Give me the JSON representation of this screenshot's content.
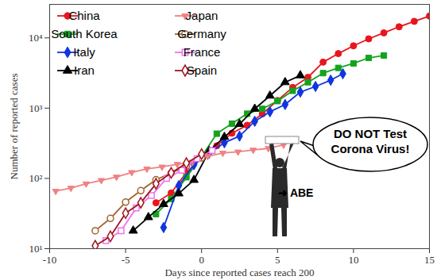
{
  "chart_data": {
    "type": "line",
    "xlabel": "Days since reported cases reach 200",
    "ylabel": "Number of reported cases",
    "log": "y",
    "grid": false,
    "legend": "upper left",
    "xlim": [
      -10,
      15
    ],
    "ylim": [
      10,
      30000
    ],
    "xticks": [
      -10,
      -5,
      0,
      5,
      10,
      15
    ],
    "yticks": [
      {
        "value": 10,
        "label": "10¹"
      },
      {
        "value": 100,
        "label": "10²"
      },
      {
        "value": 1000,
        "label": "10³"
      },
      {
        "value": 10000,
        "label": "10⁴"
      }
    ],
    "series": [
      {
        "name": "China",
        "color": "#e8161c",
        "marker": "circle",
        "x": [
          -3,
          -2,
          -1,
          0,
          1,
          2,
          3,
          4,
          5,
          6,
          7,
          8,
          9,
          10,
          11,
          12,
          13,
          14,
          15
        ],
        "values": [
          45,
          62,
          121,
          198,
          291,
          440,
          571,
          830,
          1287,
          1975,
          2744,
          4515,
          5974,
          7711,
          9692,
          11791,
          14380,
          17205,
          20438
        ]
      },
      {
        "name": "South Korea",
        "color": "#14a31e",
        "marker": "square",
        "x": [
          -3,
          -2,
          -1,
          0,
          1,
          2,
          3,
          4,
          5,
          6,
          7,
          8,
          9,
          10,
          11,
          12
        ],
        "values": [
          31,
          51,
          104,
          204,
          433,
          602,
          833,
          977,
          1261,
          1766,
          2337,
          3150,
          3736,
          4335,
          5186,
          5621
        ]
      },
      {
        "name": "Italy",
        "color": "#1034e0",
        "marker": "diamond",
        "x": [
          -2.5,
          -1.5,
          -0.5,
          0.5,
          1.5,
          2.5,
          3.5,
          4.5,
          5.5,
          6.5,
          7.5,
          8.5,
          9.3
        ],
        "values": [
          20,
          79,
          157,
          229,
          322,
          400,
          650,
          888,
          1128,
          1694,
          2036,
          2502,
          3089
        ]
      },
      {
        "name": "Iran",
        "color": "#000000",
        "marker": "triangle",
        "x": [
          -4.5,
          -3.5,
          -2.5,
          -1.5,
          -0.5,
          0.5,
          1.5,
          2.5,
          3.5,
          4.5,
          5.5,
          6.5
        ],
        "values": [
          18,
          28,
          43,
          61,
          95,
          245,
          388,
          593,
          978,
          1501,
          2336,
          2922
        ]
      },
      {
        "name": "Japan",
        "color": "#f08282",
        "marker": "triangle-down",
        "x": [
          -9.6,
          -8.6,
          -7.6,
          -6.6,
          -5.6,
          -4.6,
          -3.6,
          -2.6,
          -1.6,
          -0.6,
          0.4,
          1.4,
          2.4,
          3.4,
          4.4,
          5.4
        ],
        "values": [
          66,
          73,
          84,
          94,
          105,
          122,
          137,
          146,
          159,
          170,
          206,
          230,
          239,
          254,
          268,
          300
        ]
      },
      {
        "name": "Germany",
        "color": "#a0622a",
        "marker": "open-circle",
        "x": [
          -7,
          -6,
          -5,
          -4,
          -3,
          -2,
          -1,
          0
        ],
        "values": [
          18,
          27,
          46,
          67,
          96,
          119,
          150,
          196
        ]
      },
      {
        "name": "France",
        "color": "#f070f0",
        "marker": "open-square",
        "x": [
          -6.3,
          -5.3,
          -4.3,
          -3.3,
          -2.3,
          -1.3,
          -0.3,
          0.7
        ],
        "values": [
          13,
          18,
          38,
          57,
          100,
          130,
          191,
          250
        ]
      },
      {
        "name": "Spain",
        "color": "#a0141c",
        "marker": "open-diamond",
        "x": [
          -7,
          -6,
          -5,
          -4,
          -3,
          -2,
          -1,
          0
        ],
        "values": [
          11,
          15,
          32,
          45,
          84,
          120,
          165,
          222
        ]
      }
    ],
    "annotations": [
      {
        "text": "DO NOT Test\nCorona Virus!"
      },
      {
        "text": "➜ ABE"
      }
    ]
  }
}
